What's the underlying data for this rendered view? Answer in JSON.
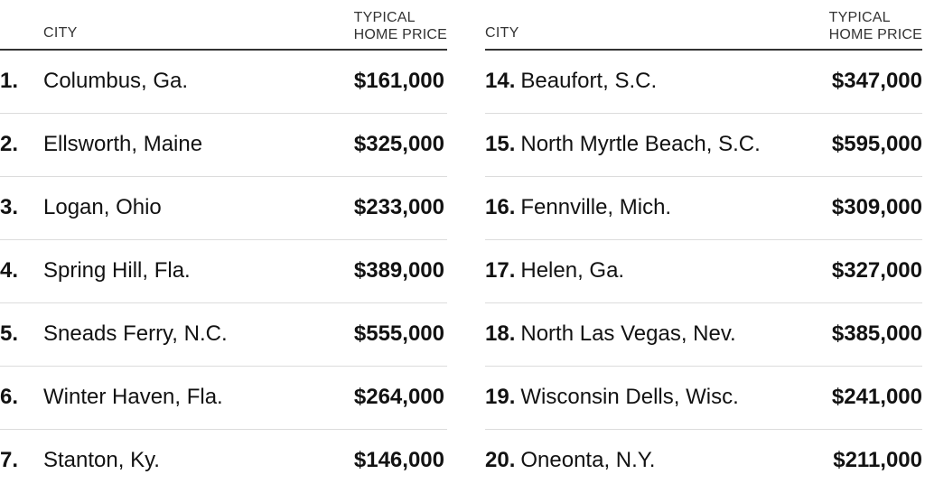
{
  "headers": {
    "city": "CITY",
    "price_line1": "TYPICAL",
    "price_line2": "HOME PRICE"
  },
  "left": [
    {
      "rank": "1.",
      "city": "Columbus, Ga.",
      "price": "$161,000"
    },
    {
      "rank": "2.",
      "city": "Ellsworth, Maine",
      "price": "$325,000"
    },
    {
      "rank": "3.",
      "city": "Logan, Ohio",
      "price": "$233,000"
    },
    {
      "rank": "4.",
      "city": "Spring Hill, Fla.",
      "price": "$389,000"
    },
    {
      "rank": "5.",
      "city": "Sneads Ferry, N.C.",
      "price": "$555,000"
    },
    {
      "rank": "6.",
      "city": "Winter Haven, Fla.",
      "price": "$264,000"
    },
    {
      "rank": "7.",
      "city": "Stanton, Ky.",
      "price": "$146,000"
    }
  ],
  "right": [
    {
      "rank": "14.",
      "city": "Beaufort, S.C.",
      "price": "$347,000"
    },
    {
      "rank": "15.",
      "city": "North Myrtle Beach, S.C.",
      "price": "$595,000"
    },
    {
      "rank": "16.",
      "city": "Fennville, Mich.",
      "price": "$309,000"
    },
    {
      "rank": "17.",
      "city": "Helen, Ga.",
      "price": "$327,000"
    },
    {
      "rank": "18.",
      "city": "North Las Vegas, Nev.",
      "price": "$385,000"
    },
    {
      "rank": "19.",
      "city": "Wisconsin Dells, Wisc.",
      "price": "$241,000"
    },
    {
      "rank": "20.",
      "city": "Oneonta, N.Y.",
      "price": "$211,000"
    }
  ]
}
